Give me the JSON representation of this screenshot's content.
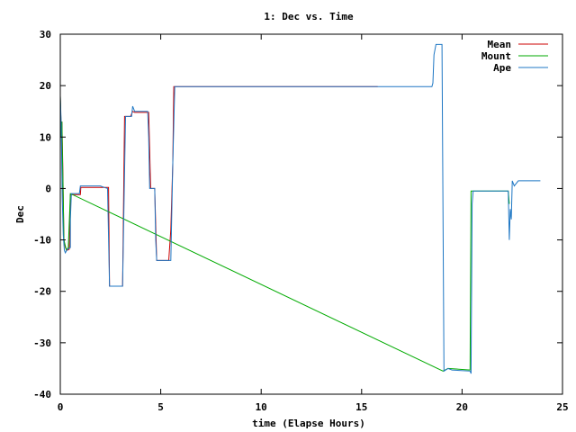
{
  "chart_data": {
    "type": "line",
    "title": "1: Dec vs. Time",
    "xlabel": "time (Elapse Hours)",
    "ylabel": "Dec",
    "xlim": [
      0,
      25
    ],
    "ylim": [
      -40,
      30
    ],
    "xticks": [
      0,
      5,
      10,
      15,
      20,
      25
    ],
    "yticks": [
      -40,
      -30,
      -20,
      -10,
      0,
      10,
      20,
      30
    ],
    "grid": false,
    "legend_position": "top-right",
    "series": [
      {
        "name": "Mean",
        "color": "#cc0000",
        "points": [
          [
            0,
            18
          ],
          [
            0.05,
            10
          ],
          [
            0.08,
            13
          ],
          [
            0.12,
            5
          ],
          [
            0.18,
            -10
          ],
          [
            0.25,
            -11.5
          ],
          [
            0.35,
            -12
          ],
          [
            0.45,
            -11.8
          ],
          [
            0.5,
            -1.2
          ],
          [
            1.0,
            -1.2
          ],
          [
            1.02,
            0.2
          ],
          [
            2.1,
            0.2
          ],
          [
            2.4,
            0.2
          ],
          [
            2.45,
            -19
          ],
          [
            3.1,
            -19
          ],
          [
            3.2,
            14
          ],
          [
            3.5,
            14
          ],
          [
            3.6,
            15
          ],
          [
            3.7,
            14.8
          ],
          [
            4.4,
            14.8
          ],
          [
            4.5,
            0
          ],
          [
            4.7,
            0
          ],
          [
            4.8,
            -14
          ],
          [
            5.4,
            -14
          ],
          [
            5.5,
            -8
          ],
          [
            5.6,
            5
          ],
          [
            5.65,
            19.8
          ],
          [
            15.8,
            19.8
          ]
        ]
      },
      {
        "name": "Mount",
        "color": "#00aa00",
        "points": [
          [
            0,
            18
          ],
          [
            0.05,
            10
          ],
          [
            0.08,
            13
          ],
          [
            0.1,
            8
          ],
          [
            0.15,
            -2
          ],
          [
            0.18,
            -10
          ],
          [
            0.3,
            -12
          ],
          [
            0.4,
            -11.5
          ],
          [
            0.5,
            -1
          ],
          [
            19.05,
            -35.5
          ],
          [
            19.3,
            -35
          ],
          [
            20.4,
            -35.3
          ],
          [
            20.45,
            -0.5
          ],
          [
            22.3,
            -0.5
          ],
          [
            22.35,
            -3
          ]
        ]
      },
      {
        "name": "Ape",
        "color": "#1f77c4",
        "points": [
          [
            0,
            18
          ],
          [
            0.05,
            12
          ],
          [
            0.1,
            -2
          ],
          [
            0.15,
            -9
          ],
          [
            0.2,
            -12
          ],
          [
            0.25,
            -12.5
          ],
          [
            0.35,
            -11.8
          ],
          [
            0.5,
            -11.5
          ],
          [
            0.5,
            -6
          ],
          [
            0.55,
            -1
          ],
          [
            0.95,
            -1
          ],
          [
            1.0,
            0.5
          ],
          [
            2.0,
            0.5
          ],
          [
            2.2,
            0.2
          ],
          [
            2.35,
            0
          ],
          [
            2.45,
            -19
          ],
          [
            3.1,
            -19
          ],
          [
            3.15,
            -8
          ],
          [
            3.25,
            14
          ],
          [
            3.55,
            14
          ],
          [
            3.6,
            16
          ],
          [
            3.7,
            15
          ],
          [
            4.35,
            15
          ],
          [
            4.4,
            10
          ],
          [
            4.45,
            0
          ],
          [
            4.7,
            0
          ],
          [
            4.75,
            -10
          ],
          [
            4.8,
            -14
          ],
          [
            5.5,
            -14
          ],
          [
            5.6,
            5
          ],
          [
            5.7,
            19.8
          ],
          [
            18.5,
            19.8
          ],
          [
            18.55,
            20.5
          ],
          [
            18.6,
            26
          ],
          [
            18.7,
            28
          ],
          [
            19.0,
            28
          ],
          [
            19.05,
            -4
          ],
          [
            19.1,
            -35.5
          ],
          [
            19.3,
            -35
          ],
          [
            19.5,
            -35.3
          ],
          [
            20.4,
            -35.5
          ],
          [
            20.45,
            -36
          ],
          [
            20.5,
            -3
          ],
          [
            20.55,
            -0.5
          ],
          [
            22.3,
            -0.5
          ],
          [
            22.35,
            -10
          ],
          [
            22.4,
            -4
          ],
          [
            22.45,
            -6
          ],
          [
            22.5,
            1.5
          ],
          [
            22.6,
            0.5
          ],
          [
            22.8,
            1.5
          ],
          [
            23.9,
            1.5
          ]
        ]
      }
    ]
  }
}
